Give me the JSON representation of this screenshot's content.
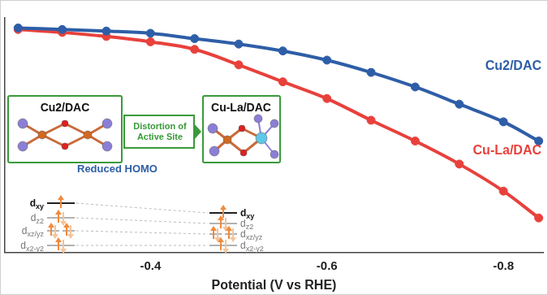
{
  "chart_data": {
    "type": "line",
    "x_label": "Potential (V vs RHE)",
    "x": [
      -0.25,
      -0.3,
      -0.35,
      -0.4,
      -0.45,
      -0.5,
      -0.55,
      -0.6,
      -0.65,
      -0.7,
      -0.75,
      -0.8,
      -0.84
    ],
    "series": [
      {
        "name": "Cu2/DAC",
        "color": "#2e5ea7",
        "marker": "circle",
        "values": [
          0.5,
          -0.2,
          -0.9,
          -1.9,
          -4.3,
          -6.7,
          -9.8,
          -13.9,
          -19.4,
          -25.9,
          -33.6,
          -41.5,
          -50.1
        ]
      },
      {
        "name": "Cu-La/DAC",
        "color": "#e8413c",
        "marker": "circle",
        "values": [
          -0.2,
          -1.5,
          -3.3,
          -5.7,
          -9.1,
          -16.0,
          -23.6,
          -31.1,
          -40.8,
          -50.1,
          -60.4,
          -72.5,
          -84.5
        ]
      }
    ],
    "xlim": [
      -0.235,
      -0.845
    ],
    "xticks": [
      -0.4,
      -0.6,
      -0.8
    ],
    "ylim": [
      -100,
      5
    ],
    "tick_labels": "x",
    "grid": false
  },
  "inset": {
    "left_label": "Cu2/DAC",
    "arrow_label": "Distortion of Active Site",
    "right_label": "Cu-La/DAC",
    "homo_label": "Reduced HOMO",
    "orbitals": [
      "dxy",
      "dz2",
      "dxz/yz",
      "dx2-y2"
    ]
  }
}
